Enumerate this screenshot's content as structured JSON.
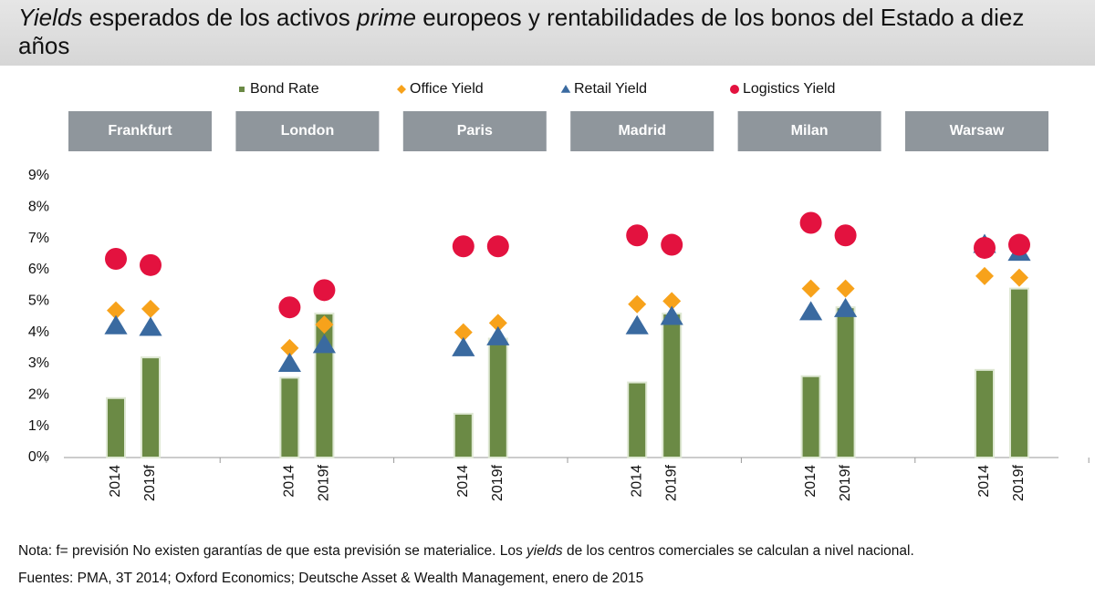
{
  "chart_data": {
    "type": "combo",
    "title": [
      {
        "text": "Yields",
        "italic": true
      },
      {
        "text": " esperados de los activos ",
        "italic": false
      },
      {
        "text": "prime",
        "italic": true
      },
      {
        "text": " europeos y rentabilidades de los bonos del Estado a diez años",
        "italic": false
      }
    ],
    "groups": [
      "Frankfurt",
      "London",
      "Paris",
      "Madrid",
      "Milan",
      "Warsaw"
    ],
    "categories": [
      "2014",
      "2019f",
      "2014",
      "2019f",
      "2014",
      "2019f",
      "2014",
      "2019f",
      "2014",
      "2019f",
      "2014",
      "2019f"
    ],
    "series": [
      {
        "name": "Bond Rate",
        "mark": "bar",
        "color": "#6b8a45",
        "values": [
          1.9,
          3.2,
          2.55,
          4.6,
          1.4,
          3.8,
          2.4,
          4.6,
          2.6,
          4.8,
          2.8,
          5.4
        ]
      },
      {
        "name": "Office Yield",
        "mark": "diamond",
        "color": "#f7a21b",
        "values": [
          4.7,
          4.75,
          3.5,
          4.25,
          4.0,
          4.3,
          4.9,
          5.0,
          5.4,
          5.4,
          5.8,
          5.75
        ]
      },
      {
        "name": "Retail Yield",
        "mark": "triangle",
        "color": "#3a6aa0",
        "values": [
          4.2,
          4.15,
          3.0,
          3.6,
          3.5,
          3.85,
          4.2,
          4.5,
          4.65,
          4.75,
          6.8,
          6.55
        ]
      },
      {
        "name": "Logistics Yield",
        "mark": "circle",
        "color": "#e3123f",
        "values": [
          6.35,
          6.15,
          4.8,
          5.35,
          6.75,
          6.75,
          7.1,
          6.8,
          7.5,
          7.1,
          6.7,
          6.8
        ]
      }
    ],
    "ylim": [
      0,
      9
    ],
    "yticks": [
      {
        "value": 0,
        "label": "0%"
      },
      {
        "value": 1,
        "label": "1%"
      },
      {
        "value": 2,
        "label": "2%"
      },
      {
        "value": 3,
        "label": "3%"
      },
      {
        "value": 4,
        "label": "4%"
      },
      {
        "value": 5,
        "label": "5%"
      },
      {
        "value": 6,
        "label": "6%"
      },
      {
        "value": 7,
        "label": "7%"
      },
      {
        "value": 8,
        "label": "8%"
      },
      {
        "value": 9,
        "label": "9%"
      }
    ],
    "grid": false,
    "note": [
      {
        "text": "Nota: f= previsión No existen garantías de que esta previsión se materialice. Los ",
        "italic": false
      },
      {
        "text": "yields",
        "italic": true
      },
      {
        "text": " de los centros comerciales se calculan a nivel nacional.",
        "italic": false
      }
    ],
    "source": "Fuentes: PMA, 3T 2014; Oxford Economics; Deutsche Asset & Wealth Management, enero de 2015"
  }
}
